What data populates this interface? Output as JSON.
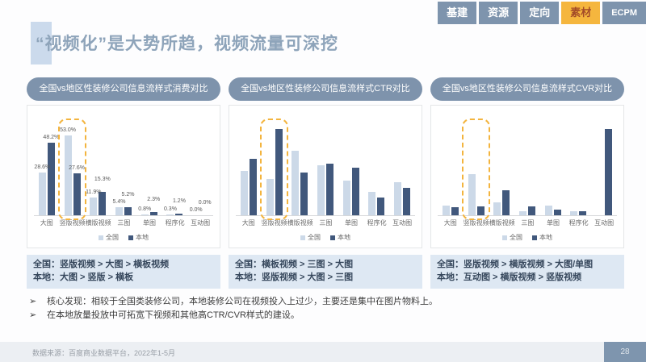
{
  "nav": {
    "tabs": [
      {
        "label": "基建",
        "active": false
      },
      {
        "label": "资源",
        "active": false
      },
      {
        "label": "定向",
        "active": false
      },
      {
        "label": "素材",
        "active": true
      },
      {
        "label": "ECPM",
        "active": false
      }
    ]
  },
  "title": "“视频化”是大势所趋，视频流量可深挖",
  "colors": {
    "nav_tab": "#7e94ad",
    "nav_tab_active": "#f5b63e",
    "nav_tab_active_text": "#a34b28",
    "panel_pill": "#7e93ac",
    "bar_national": "#ccd9e8",
    "bar_local": "#41587c",
    "highlight_dashed": "#f3b43e",
    "summary_bg": "#dee8f3",
    "title_text": "#8ea4ba",
    "page_box": "#7e95ae"
  },
  "panels": [
    {
      "header": "全国vs地区性装修公司信息流样式消费对比",
      "summary_line1": "全国：竖版视频 > 大图 > 横板视频",
      "summary_line2": "本地：大图 > 竖版 > 横板"
    },
    {
      "header": "全国vs地区性装修公司信息流样式CTR对比",
      "summary_line1": "全国：横板视频 > 三图 > 大图",
      "summary_line2": "本地：竖版视频 > 大图 > 三图"
    },
    {
      "header": "全国vs地区性装修公司信息流样式CVR对比",
      "summary_line1": "全国：竖版视频 > 横版视频 > 大图/单图",
      "summary_line2": "本地：互动图 > 横版视频 > 竖版视频"
    }
  ],
  "chart_data": [
    {
      "type": "bar",
      "title": "全国vs地区性装修公司信息流样式消费对比",
      "categories": [
        "大图",
        "竖版视频",
        "横版视频",
        "三图",
        "单图",
        "程序化",
        "互动图"
      ],
      "series": [
        {
          "name": "全国",
          "values": [
            28.6,
            53.0,
            11.9,
            5.4,
            0.8,
            0.3,
            0.0
          ]
        },
        {
          "name": "本地",
          "values": [
            48.2,
            27.6,
            15.3,
            5.2,
            2.3,
            1.2,
            0.0
          ]
        }
      ],
      "unit": "%",
      "ymax": 60,
      "show_value_labels": true,
      "highlight_category": "竖版视频",
      "legend_position": "bottom",
      "grid": false
    },
    {
      "type": "bar",
      "title": "全国vs地区性装修公司信息流样式CTR对比",
      "categories": [
        "大图",
        "竖版视频",
        "横版视频",
        "三图",
        "单图",
        "程序化",
        "互动图"
      ],
      "series": [
        {
          "name": "全国",
          "values": [
            0.52,
            0.42,
            0.75,
            0.58,
            0.4,
            0.27,
            0.38
          ]
        },
        {
          "name": "本地",
          "values": [
            0.66,
            1.0,
            0.5,
            0.6,
            0.55,
            0.21,
            0.32
          ]
        }
      ],
      "unit": "relative (no data labels shown)",
      "ymax": 1.05,
      "show_value_labels": false,
      "highlight_category": "竖版视频",
      "legend_position": "bottom",
      "grid": false
    },
    {
      "type": "bar",
      "title": "全国vs地区性装修公司信息流样式CVR对比",
      "categories": [
        "大图",
        "竖版视频",
        "横版视频",
        "三图",
        "单图",
        "程序化",
        "互动图"
      ],
      "series": [
        {
          "name": "全国",
          "values": [
            0.11,
            0.48,
            0.15,
            0.05,
            0.11,
            0.05,
            0.0
          ]
        },
        {
          "name": "本地",
          "values": [
            0.09,
            0.1,
            0.29,
            0.1,
            0.07,
            0.05,
            1.0
          ]
        }
      ],
      "unit": "relative (no data labels shown)",
      "ymax": 1.05,
      "show_value_labels": false,
      "highlight_category": "竖版视频",
      "legend_position": "bottom",
      "grid": false
    }
  ],
  "bullets": [
    "核心发现：相较于全国类装修公司，本地装修公司在视频投入上过少，主要还是集中在图片物料上。",
    "在本地放量投放中可拓宽下视频和其他高CTR/CVR样式的建设。"
  ],
  "bullet_marker": "➢",
  "footer": {
    "source": "数据来源：百度商业数据平台，2022年1-5月",
    "page": "28"
  }
}
